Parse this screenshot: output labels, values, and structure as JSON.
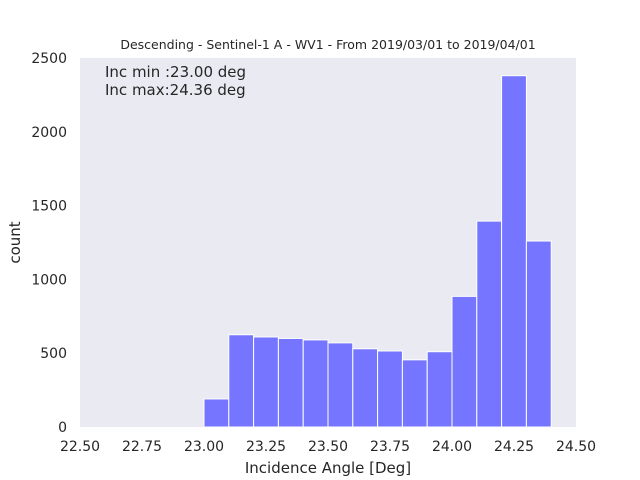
{
  "chart_data": {
    "type": "bar",
    "title": "Descending - Sentinel-1 A - WV1 - From 2019/03/01 to 2019/04/01",
    "xlabel": "Incidence Angle [Deg]",
    "ylabel": "count",
    "xlim": [
      22.5,
      24.5
    ],
    "ylim": [
      0,
      2500
    ],
    "xticks": [
      22.5,
      22.75,
      23.0,
      23.25,
      23.5,
      23.75,
      24.0,
      24.25,
      24.5
    ],
    "xtick_labels": [
      "22.50",
      "22.75",
      "23.00",
      "23.25",
      "23.50",
      "23.75",
      "24.00",
      "24.25",
      "24.50"
    ],
    "yticks": [
      0,
      500,
      1000,
      1500,
      2000,
      2500
    ],
    "ytick_labels": [
      "0",
      "500",
      "1000",
      "1500",
      "2000",
      "2500"
    ],
    "grid": false,
    "bar_color": "#7575ff",
    "background_color": "#eaeaf2",
    "bins": [
      {
        "x0": 23.0,
        "x1": 23.1,
        "value": 190
      },
      {
        "x0": 23.1,
        "x1": 23.2,
        "value": 625
      },
      {
        "x0": 23.2,
        "x1": 23.3,
        "value": 610
      },
      {
        "x0": 23.3,
        "x1": 23.4,
        "value": 600
      },
      {
        "x0": 23.4,
        "x1": 23.5,
        "value": 590
      },
      {
        "x0": 23.5,
        "x1": 23.6,
        "value": 570
      },
      {
        "x0": 23.6,
        "x1": 23.7,
        "value": 530
      },
      {
        "x0": 23.7,
        "x1": 23.8,
        "value": 515
      },
      {
        "x0": 23.8,
        "x1": 23.9,
        "value": 455
      },
      {
        "x0": 23.9,
        "x1": 24.0,
        "value": 510
      },
      {
        "x0": 24.0,
        "x1": 24.1,
        "value": 885
      },
      {
        "x0": 24.1,
        "x1": 24.2,
        "value": 1395
      },
      {
        "x0": 24.2,
        "x1": 24.3,
        "value": 2380
      },
      {
        "x0": 24.3,
        "x1": 24.4,
        "value": 1260
      }
    ],
    "annotations": [
      "Inc min :23.00 deg",
      "Inc max:24.36 deg"
    ]
  }
}
